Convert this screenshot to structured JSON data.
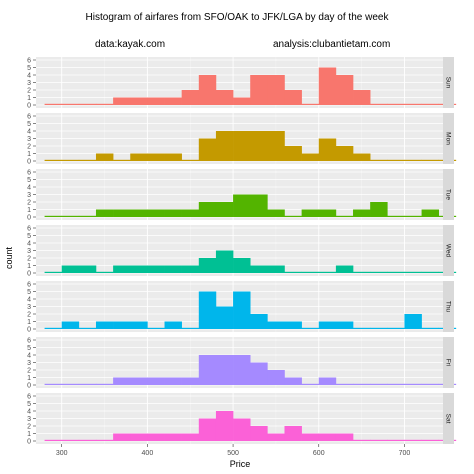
{
  "chart_data": {
    "type": "histogram",
    "title": "Histogram of airfares from SFO/OAK to JFK/LGA by day of the week",
    "subtitle_left": "data:kayak.com",
    "subtitle_right": "analysis:clubantietam.com",
    "xlabel": "Price",
    "ylabel": "count",
    "xlim": [
      270,
      745
    ],
    "ylim": [
      0,
      6
    ],
    "x_ticks": [
      300,
      400,
      500,
      600,
      700
    ],
    "y_ticks": [
      0,
      1,
      2,
      3,
      4,
      5,
      6
    ],
    "bin_start": 280,
    "bin_width": 20,
    "grid": true,
    "panels": [
      {
        "name": "Sun",
        "color": "#F8766D",
        "counts": [
          0,
          0,
          0,
          0,
          1,
          1,
          1,
          1,
          2,
          4,
          2,
          1,
          4,
          4,
          2,
          0,
          5,
          4,
          2,
          0,
          0,
          0,
          0,
          0
        ]
      },
      {
        "name": "Mon",
        "color": "#C49A00",
        "counts": [
          0,
          0,
          0,
          1,
          0,
          1,
          1,
          1,
          0,
          3,
          4,
          4,
          4,
          4,
          2,
          1,
          3,
          2,
          1,
          0,
          0,
          0,
          0,
          0
        ]
      },
      {
        "name": "Tue",
        "color": "#53B400",
        "counts": [
          0,
          0,
          0,
          1,
          1,
          1,
          1,
          1,
          1,
          2,
          2,
          3,
          3,
          1,
          0,
          1,
          1,
          0,
          1,
          2,
          0,
          0,
          1,
          0
        ]
      },
      {
        "name": "Wed",
        "color": "#00C094",
        "counts": [
          0,
          1,
          1,
          0,
          1,
          1,
          1,
          1,
          1,
          2,
          3,
          2,
          1,
          1,
          0,
          0,
          0,
          1,
          0,
          0,
          0,
          0,
          0,
          0
        ]
      },
      {
        "name": "Thu",
        "color": "#00B6EB",
        "counts": [
          0,
          1,
          0,
          1,
          1,
          1,
          0,
          1,
          0,
          5,
          3,
          5,
          2,
          1,
          1,
          0,
          1,
          1,
          0,
          0,
          0,
          2,
          0,
          0
        ]
      },
      {
        "name": "Fri",
        "color": "#A58AFF",
        "counts": [
          0,
          0,
          0,
          0,
          1,
          1,
          1,
          1,
          1,
          4,
          4,
          4,
          3,
          2,
          1,
          0,
          1,
          0,
          0,
          0,
          0,
          0,
          0,
          0
        ]
      },
      {
        "name": "Sat",
        "color": "#FB61D7",
        "counts": [
          0,
          0,
          0,
          0,
          1,
          1,
          1,
          1,
          1,
          3,
          4,
          3,
          2,
          1,
          2,
          1,
          1,
          1,
          0,
          0,
          0,
          0,
          0,
          0
        ]
      }
    ]
  },
  "colors": {
    "panel_bg": "#ebebeb",
    "grid_major": "#ffffff",
    "strip_bg": "#d9d9d9"
  }
}
